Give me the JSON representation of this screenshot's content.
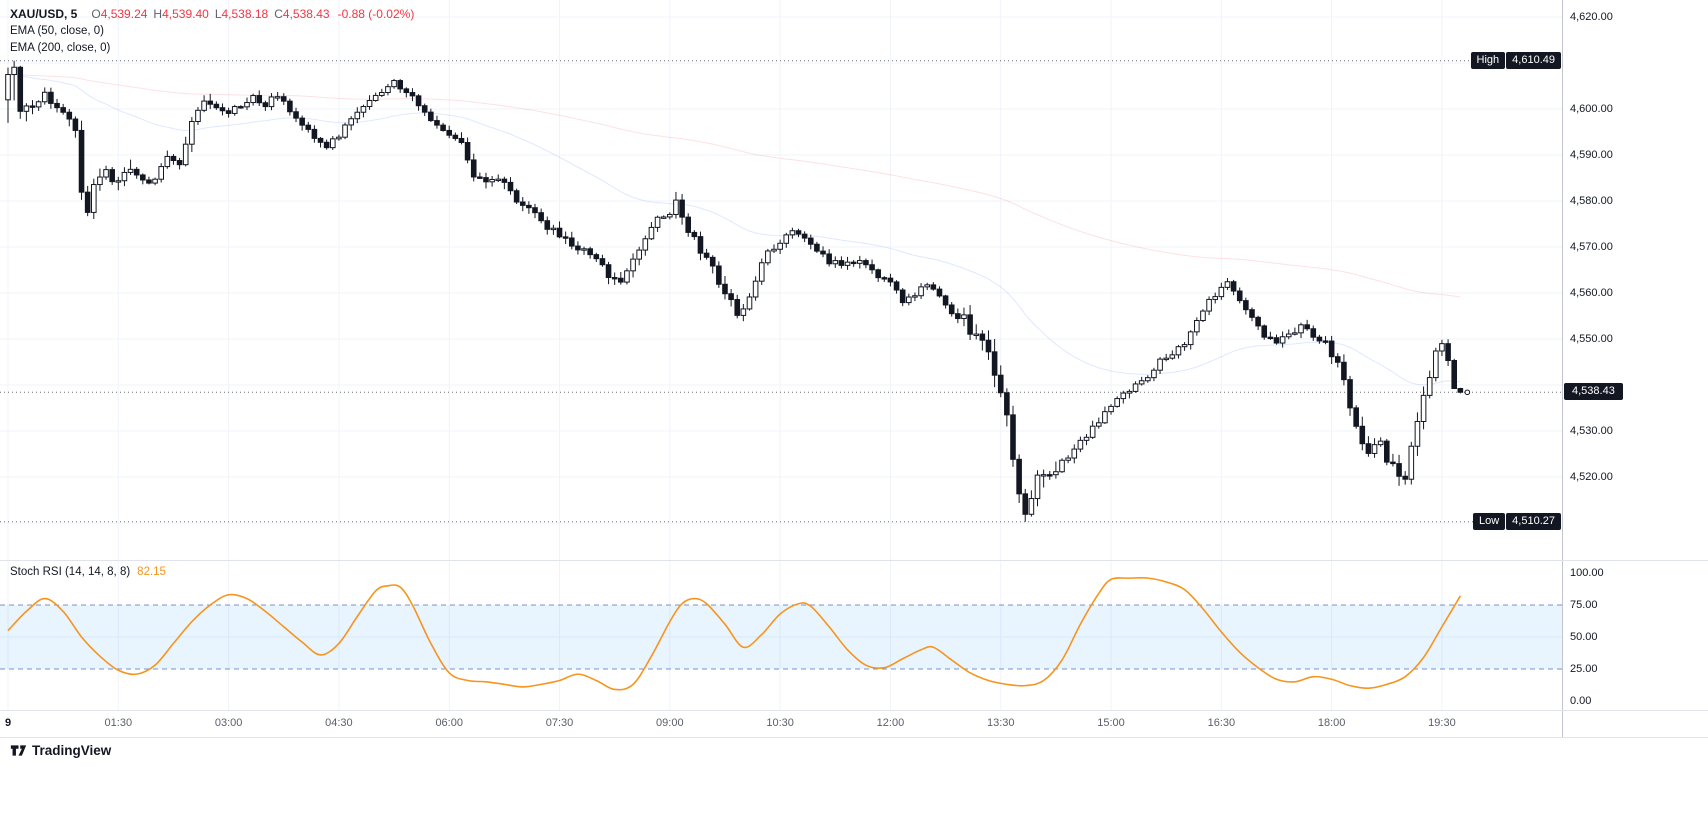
{
  "header": {
    "symbol": "XAU/USD, 5",
    "o_label": "O",
    "o": "4,539.24",
    "h_label": "H",
    "h": "4,539.40",
    "l_label": "L",
    "l": "4,538.18",
    "c_label": "C",
    "c": "4,538.43",
    "change": "-0.88 (-0.02%)",
    "indicator1": "EMA (50, close, 0)",
    "indicator2": "EMA (200, close, 0)"
  },
  "price_axis": {
    "ticks": [
      {
        "label": "4,620.00",
        "price": 4620
      },
      {
        "label": "4,600.00",
        "price": 4600
      },
      {
        "label": "4,590.00",
        "price": 4590
      },
      {
        "label": "4,580.00",
        "price": 4580
      },
      {
        "label": "4,570.00",
        "price": 4570
      },
      {
        "label": "4,560.00",
        "price": 4560
      },
      {
        "label": "4,550.00",
        "price": 4550
      },
      {
        "label": "4,530.00",
        "price": 4530
      },
      {
        "label": "4,520.00",
        "price": 4520
      }
    ],
    "high_tag": "High",
    "high_value": "4,610.49",
    "low_tag": "Low",
    "low_value": "4,510.27",
    "last_value": "4,538.43"
  },
  "stoch_axis_ticks": [
    {
      "label": "100.00",
      "value": 100
    },
    {
      "label": "75.00",
      "value": 75
    },
    {
      "label": "50.00",
      "value": 50
    },
    {
      "label": "25.00",
      "value": 25
    },
    {
      "label": "0.00",
      "value": 0
    }
  ],
  "time_axis": [
    {
      "label": "9",
      "t": 0,
      "major": true
    },
    {
      "label": "01:30",
      "t": 90
    },
    {
      "label": "03:00",
      "t": 180
    },
    {
      "label": "04:30",
      "t": 270
    },
    {
      "label": "06:00",
      "t": 360
    },
    {
      "label": "07:30",
      "t": 450
    },
    {
      "label": "09:00",
      "t": 540
    },
    {
      "label": "10:30",
      "t": 630
    },
    {
      "label": "12:00",
      "t": 720
    },
    {
      "label": "13:30",
      "t": 810
    },
    {
      "label": "15:00",
      "t": 900
    },
    {
      "label": "16:30",
      "t": 990
    },
    {
      "label": "18:00",
      "t": 1080
    },
    {
      "label": "19:30",
      "t": 1170
    }
  ],
  "stoch_legend": {
    "title": "Stoch RSI (14, 14, 8, 8)",
    "value": "82.15"
  },
  "footer": {
    "brand": "TradingView"
  },
  "colors": {
    "candle": "#131722",
    "candle_up_fill": "#ffffff",
    "grid": "#f0f3fa",
    "dotted_line": "#3a3e47",
    "label_bg": "#131722",
    "down_text": "#f23645",
    "ema50": "#2962ff",
    "ema200": "#f23645",
    "stoch_line": "#f7941d",
    "band_line": "#6e87c8",
    "band_fill": "rgba(33,150,243,0.10)"
  },
  "chart_data": {
    "type": "candlestick",
    "title": "XAU/USD 5-minute candlestick chart with EMA(50), EMA(200) and Stoch RSI (14,14,8,8)",
    "interval_minutes": 5,
    "x_range_minutes": [
      0,
      1185
    ],
    "y_range_visible": [
      4506,
      4624
    ],
    "grid": true,
    "last_candle_ohlc": {
      "open": 4539.24,
      "high": 4539.4,
      "low": 4538.18,
      "close": 4538.43,
      "change": -0.88,
      "change_pct": -0.02
    },
    "session_high": 4610.49,
    "session_low": 4510.27,
    "price_path_keypoints": [
      [
        0,
        4604
      ],
      [
        5,
        4608
      ],
      [
        10,
        4600
      ],
      [
        20,
        4601
      ],
      [
        30,
        4603
      ],
      [
        40,
        4600
      ],
      [
        50,
        4599
      ],
      [
        55,
        4596
      ],
      [
        60,
        4581
      ],
      [
        65,
        4578
      ],
      [
        70,
        4583
      ],
      [
        80,
        4586
      ],
      [
        90,
        4584
      ],
      [
        100,
        4587
      ],
      [
        110,
        4584
      ],
      [
        120,
        4585
      ],
      [
        130,
        4590
      ],
      [
        140,
        4588
      ],
      [
        150,
        4597
      ],
      [
        160,
        4602
      ],
      [
        170,
        4600
      ],
      [
        180,
        4599
      ],
      [
        190,
        4601
      ],
      [
        200,
        4603
      ],
      [
        210,
        4601
      ],
      [
        220,
        4603
      ],
      [
        230,
        4600
      ],
      [
        240,
        4597
      ],
      [
        250,
        4593
      ],
      [
        260,
        4592
      ],
      [
        270,
        4594
      ],
      [
        280,
        4598
      ],
      [
        290,
        4601
      ],
      [
        300,
        4603
      ],
      [
        310,
        4605
      ],
      [
        315,
        4606
      ],
      [
        320,
        4605
      ],
      [
        330,
        4603
      ],
      [
        340,
        4599
      ],
      [
        350,
        4596
      ],
      [
        360,
        4595
      ],
      [
        370,
        4592
      ],
      [
        380,
        4586
      ],
      [
        390,
        4584
      ],
      [
        400,
        4585
      ],
      [
        410,
        4582
      ],
      [
        420,
        4579
      ],
      [
        430,
        4577
      ],
      [
        440,
        4574
      ],
      [
        450,
        4573
      ],
      [
        460,
        4571
      ],
      [
        470,
        4569
      ],
      [
        480,
        4567
      ],
      [
        490,
        4564
      ],
      [
        500,
        4563
      ],
      [
        510,
        4567
      ],
      [
        520,
        4572
      ],
      [
        530,
        4576
      ],
      [
        540,
        4578
      ],
      [
        545,
        4580
      ],
      [
        555,
        4574
      ],
      [
        565,
        4569
      ],
      [
        575,
        4565
      ],
      [
        585,
        4560
      ],
      [
        595,
        4556
      ],
      [
        600,
        4556
      ],
      [
        610,
        4563
      ],
      [
        620,
        4569
      ],
      [
        630,
        4571
      ],
      [
        640,
        4574
      ],
      [
        650,
        4572
      ],
      [
        660,
        4569
      ],
      [
        670,
        4567
      ],
      [
        680,
        4566
      ],
      [
        690,
        4567
      ],
      [
        700,
        4566
      ],
      [
        710,
        4564
      ],
      [
        720,
        4562
      ],
      [
        730,
        4558
      ],
      [
        740,
        4560
      ],
      [
        750,
        4562
      ],
      [
        760,
        4559
      ],
      [
        770,
        4556
      ],
      [
        780,
        4554
      ],
      [
        790,
        4550
      ],
      [
        800,
        4547
      ],
      [
        810,
        4539
      ],
      [
        815,
        4532
      ],
      [
        820,
        4523
      ],
      [
        825,
        4516
      ],
      [
        830,
        4512
      ],
      [
        835,
        4515
      ],
      [
        840,
        4519
      ],
      [
        850,
        4521
      ],
      [
        860,
        4523
      ],
      [
        870,
        4526
      ],
      [
        880,
        4529
      ],
      [
        890,
        4532
      ],
      [
        900,
        4536
      ],
      [
        910,
        4538
      ],
      [
        920,
        4540
      ],
      [
        930,
        4542
      ],
      [
        940,
        4545
      ],
      [
        950,
        4547
      ],
      [
        960,
        4549
      ],
      [
        970,
        4554
      ],
      [
        980,
        4558
      ],
      [
        990,
        4561
      ],
      [
        995,
        4562
      ],
      [
        1005,
        4559
      ],
      [
        1015,
        4555
      ],
      [
        1025,
        4551
      ],
      [
        1035,
        4549
      ],
      [
        1045,
        4551
      ],
      [
        1055,
        4553
      ],
      [
        1065,
        4551
      ],
      [
        1075,
        4549
      ],
      [
        1085,
        4545
      ],
      [
        1090,
        4541
      ],
      [
        1095,
        4536
      ],
      [
        1100,
        4532
      ],
      [
        1105,
        4528
      ],
      [
        1110,
        4524
      ],
      [
        1115,
        4526
      ],
      [
        1120,
        4528
      ],
      [
        1125,
        4524
      ],
      [
        1130,
        4522
      ],
      [
        1135,
        4521
      ],
      [
        1140,
        4520
      ],
      [
        1145,
        4526
      ],
      [
        1150,
        4532
      ],
      [
        1155,
        4537
      ],
      [
        1160,
        4542
      ],
      [
        1165,
        4547
      ],
      [
        1170,
        4549
      ],
      [
        1175,
        4545
      ],
      [
        1180,
        4541
      ],
      [
        1185,
        4538.43
      ]
    ],
    "stoch_rsi": {
      "type": "line",
      "name": "Stoch RSI (14, 14, 8, 8)",
      "last": 82.15,
      "range": [
        0,
        100
      ],
      "upper_band": 75,
      "lower_band": 25,
      "keypoints": [
        [
          0,
          55
        ],
        [
          15,
          70
        ],
        [
          30,
          80
        ],
        [
          45,
          70
        ],
        [
          60,
          50
        ],
        [
          75,
          35
        ],
        [
          90,
          24
        ],
        [
          105,
          21
        ],
        [
          120,
          28
        ],
        [
          135,
          45
        ],
        [
          150,
          62
        ],
        [
          165,
          75
        ],
        [
          180,
          83
        ],
        [
          195,
          80
        ],
        [
          210,
          70
        ],
        [
          225,
          58
        ],
        [
          240,
          46
        ],
        [
          255,
          36
        ],
        [
          270,
          45
        ],
        [
          285,
          66
        ],
        [
          300,
          86
        ],
        [
          310,
          90
        ],
        [
          320,
          89
        ],
        [
          330,
          75
        ],
        [
          345,
          45
        ],
        [
          360,
          22
        ],
        [
          375,
          16
        ],
        [
          390,
          15
        ],
        [
          405,
          13
        ],
        [
          420,
          11
        ],
        [
          435,
          13
        ],
        [
          450,
          16
        ],
        [
          465,
          21
        ],
        [
          480,
          16
        ],
        [
          495,
          9
        ],
        [
          510,
          13
        ],
        [
          525,
          35
        ],
        [
          540,
          62
        ],
        [
          550,
          76
        ],
        [
          560,
          80
        ],
        [
          570,
          76
        ],
        [
          585,
          60
        ],
        [
          600,
          42
        ],
        [
          615,
          52
        ],
        [
          630,
          68
        ],
        [
          645,
          76
        ],
        [
          655,
          74
        ],
        [
          670,
          58
        ],
        [
          685,
          40
        ],
        [
          700,
          28
        ],
        [
          715,
          26
        ],
        [
          730,
          33
        ],
        [
          745,
          40
        ],
        [
          755,
          42
        ],
        [
          770,
          32
        ],
        [
          785,
          22
        ],
        [
          800,
          16
        ],
        [
          815,
          13
        ],
        [
          830,
          12
        ],
        [
          845,
          16
        ],
        [
          860,
          32
        ],
        [
          875,
          60
        ],
        [
          890,
          84
        ],
        [
          900,
          95
        ],
        [
          915,
          96
        ],
        [
          930,
          96
        ],
        [
          945,
          93
        ],
        [
          960,
          87
        ],
        [
          975,
          72
        ],
        [
          990,
          54
        ],
        [
          1005,
          38
        ],
        [
          1020,
          26
        ],
        [
          1035,
          17
        ],
        [
          1050,
          15
        ],
        [
          1065,
          19
        ],
        [
          1080,
          17
        ],
        [
          1095,
          12
        ],
        [
          1110,
          10
        ],
        [
          1125,
          13
        ],
        [
          1140,
          19
        ],
        [
          1155,
          34
        ],
        [
          1170,
          58
        ],
        [
          1180,
          74
        ],
        [
          1185,
          82.15
        ]
      ]
    }
  }
}
